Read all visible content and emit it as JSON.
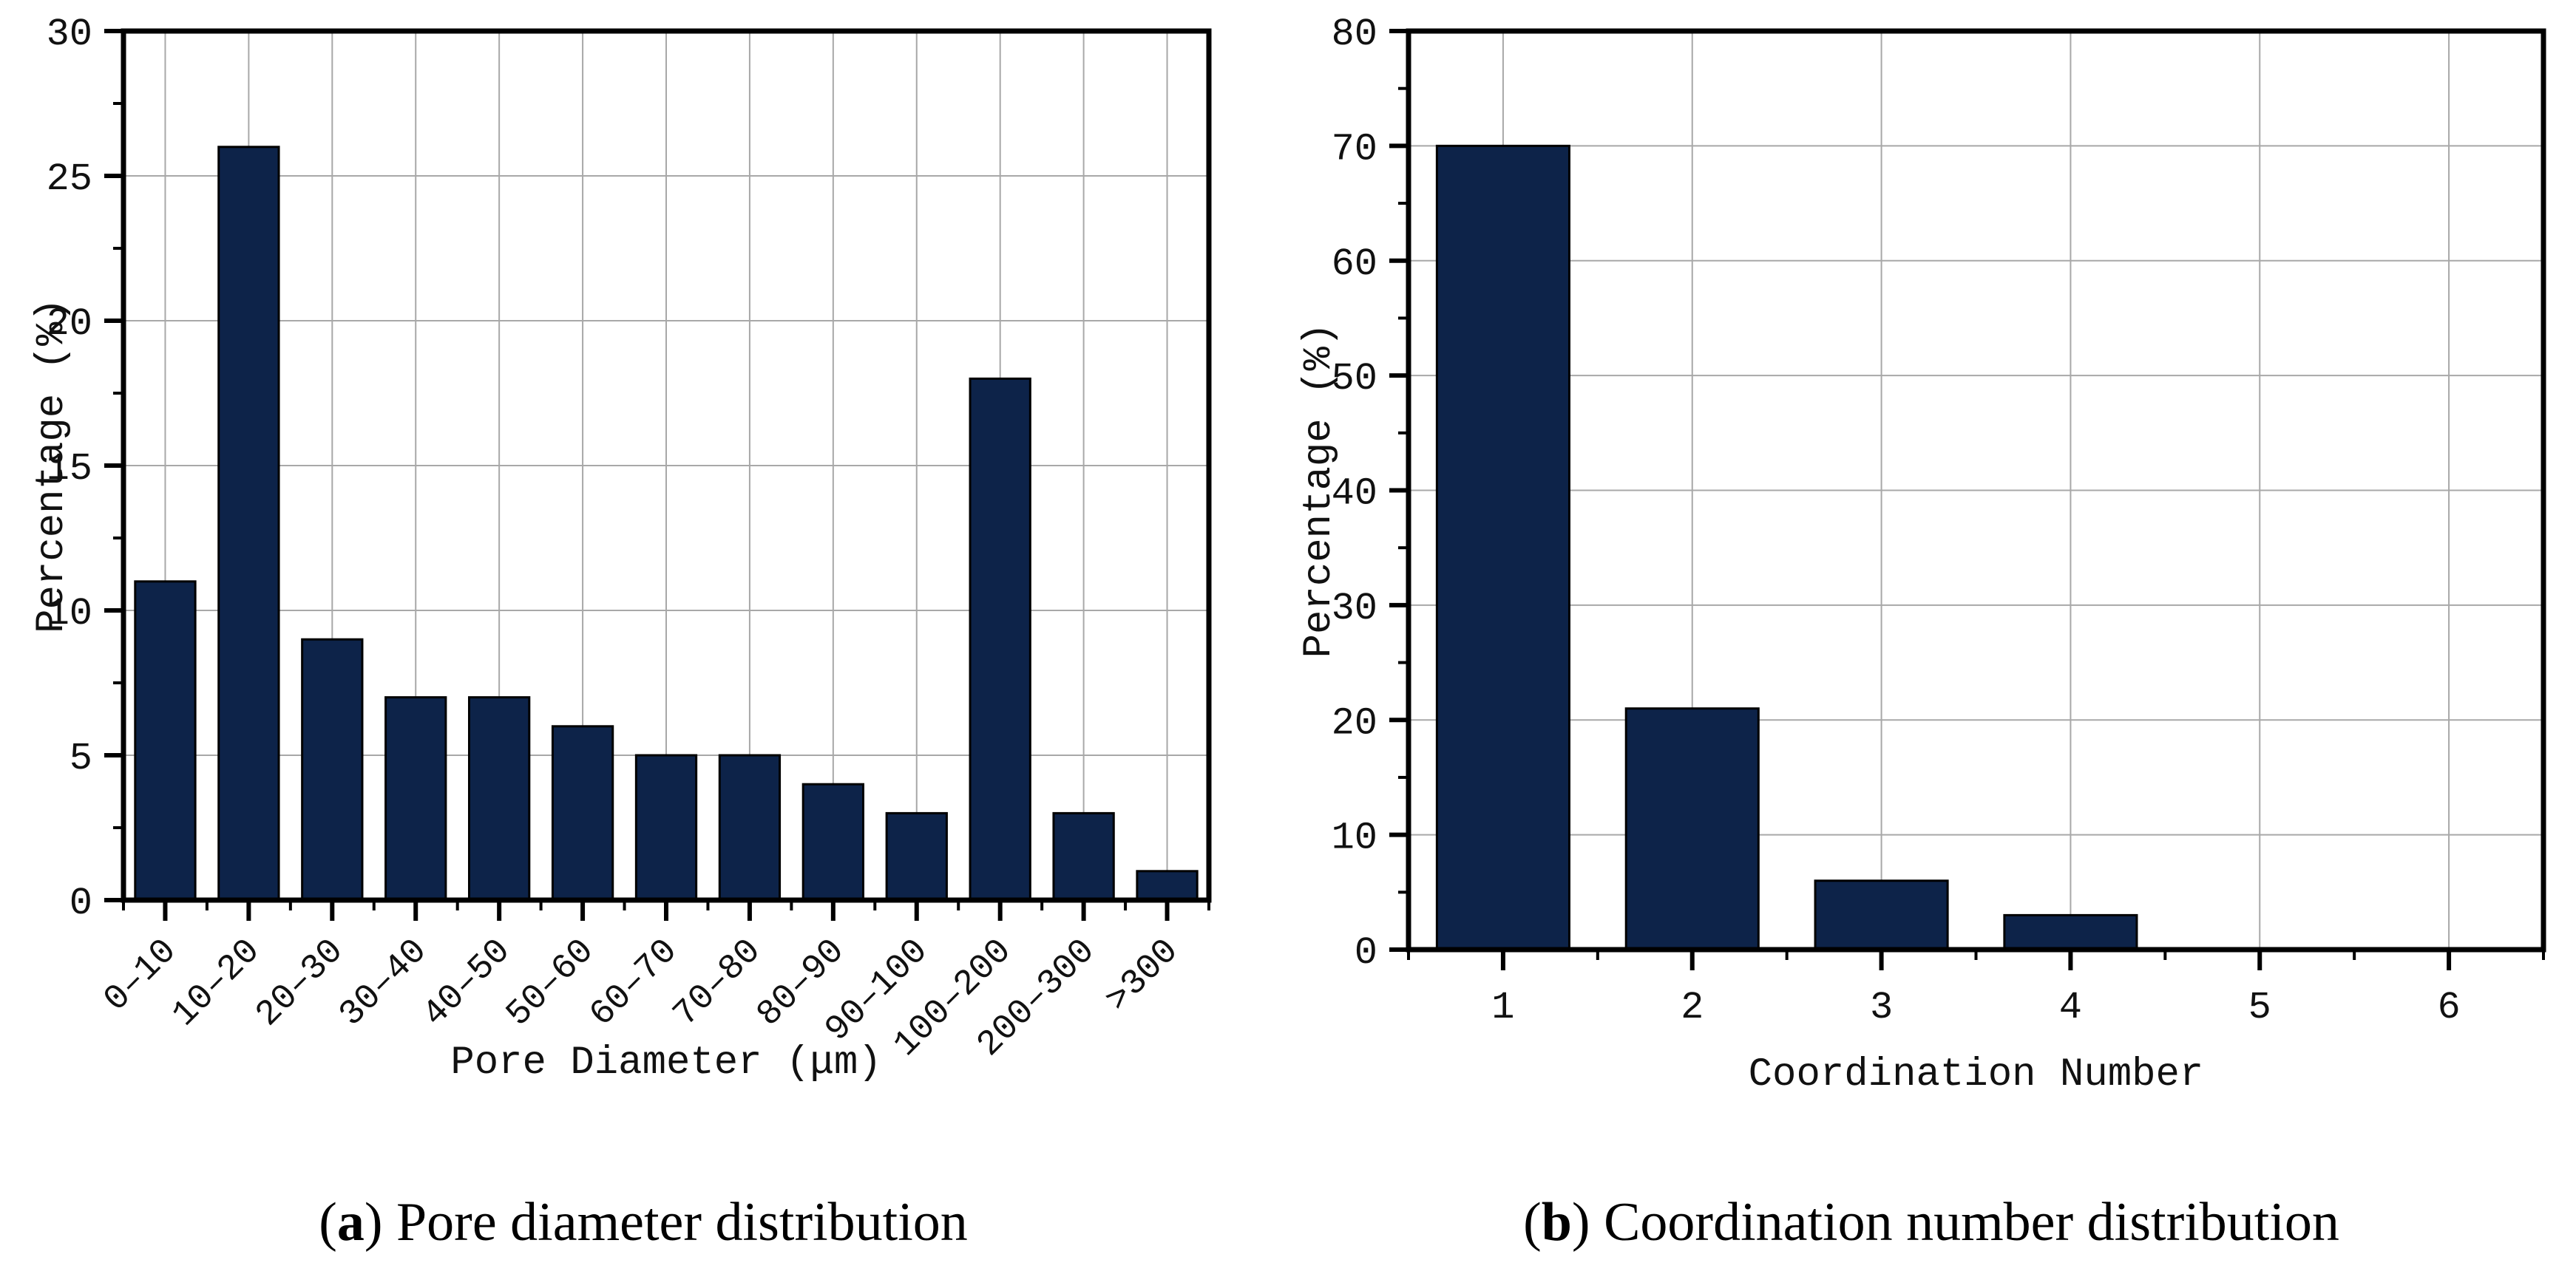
{
  "style": {
    "background": "#ffffff",
    "bar_color": "#0d2349",
    "bar_edge_color": "#000000",
    "grid_color": "#a8a8a8",
    "axis_color": "#000000",
    "text_color": "#111111"
  },
  "captions": {
    "a": {
      "marker_open": "(",
      "marker_letter": "a",
      "marker_close": ") ",
      "text": "Pore diameter distribution"
    },
    "b": {
      "marker_open": "(",
      "marker_letter": "b",
      "marker_close": ") ",
      "text": "Coordination number distribution"
    }
  },
  "chart_data": [
    {
      "id": "a",
      "type": "bar",
      "title": "",
      "categories": [
        "0–10",
        "10–20",
        "20–30",
        "30–40",
        "40–50",
        "50–60",
        "60–70",
        "70–80",
        "80–90",
        "90–100",
        "100–200",
        "200–300",
        ">300"
      ],
      "values": [
        11,
        26,
        9,
        7,
        7,
        6,
        5,
        5,
        4,
        3,
        18,
        3,
        1
      ],
      "xlabel": "Pore Diameter (μm)",
      "ylabel": "Percentage (%)",
      "ylim": [
        0,
        30
      ],
      "y_ticks": [
        0,
        5,
        10,
        15,
        20,
        25,
        30
      ],
      "y_minor_step": 2.5,
      "grid": true,
      "legend": "none",
      "x_tick_rotation_deg": 45
    },
    {
      "id": "b",
      "type": "bar",
      "title": "",
      "categories": [
        "1",
        "2",
        "3",
        "4",
        "5",
        "6"
      ],
      "values": [
        70,
        21,
        6,
        3,
        0,
        0
      ],
      "xlabel": "Coordination Number",
      "ylabel": "Percentage (%)",
      "ylim": [
        0,
        80
      ],
      "y_ticks": [
        0,
        10,
        20,
        30,
        40,
        50,
        60,
        70,
        80
      ],
      "y_minor_step": 5,
      "grid": true,
      "legend": "none",
      "x_tick_rotation_deg": 0
    }
  ]
}
